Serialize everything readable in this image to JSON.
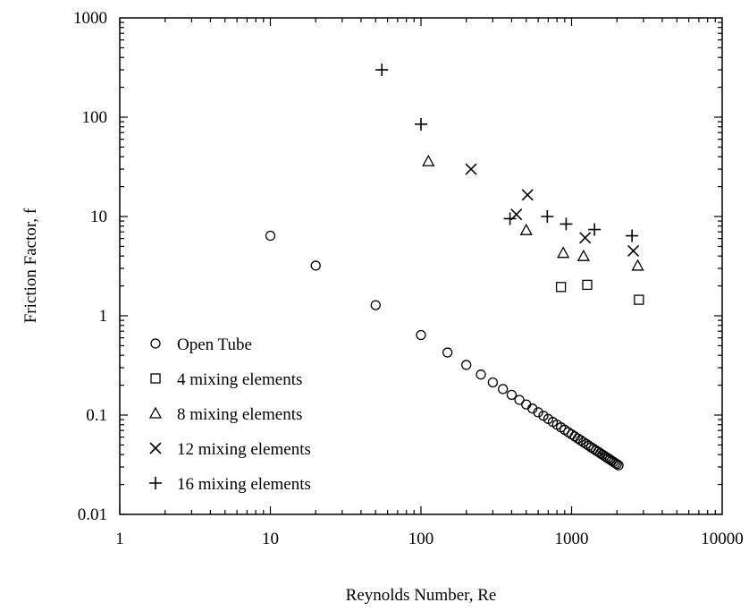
{
  "chart_data": {
    "type": "scatter",
    "xlabel": "Reynolds Number, Re",
    "ylabel": "Friction Factor, f",
    "xscale": "log",
    "yscale": "log",
    "xlim": [
      1,
      10000
    ],
    "ylim": [
      0.01,
      1000
    ],
    "xticks": [
      1,
      10,
      100,
      1000,
      10000
    ],
    "xtick_labels": [
      "1",
      "10",
      "100",
      "1000",
      "10000"
    ],
    "yticks": [
      0.01,
      0.1,
      1,
      10,
      100,
      1000
    ],
    "ytick_labels": [
      "0.01",
      "0.1",
      "1",
      "10",
      "100",
      "1000"
    ],
    "grid": false,
    "legend_position": "bottom-left",
    "series": [
      {
        "name": "Open Tube",
        "marker": "circle",
        "x": [
          10,
          20,
          50,
          100,
          150,
          200,
          250,
          300,
          350,
          400,
          450,
          500,
          550,
          600,
          650,
          700,
          750,
          800,
          850,
          900,
          950,
          1000,
          1050,
          1100,
          1150,
          1200,
          1250,
          1300,
          1350,
          1400,
          1450,
          1500,
          1550,
          1600,
          1650,
          1700,
          1750,
          1800,
          1850,
          1900,
          1950,
          2000,
          2050
        ],
        "y": [
          6.4,
          3.2,
          1.28,
          0.64,
          0.4267,
          0.32,
          0.256,
          0.2133,
          0.1829,
          0.16,
          0.1422,
          0.128,
          0.1164,
          0.1067,
          0.0985,
          0.0914,
          0.0853,
          0.08,
          0.0753,
          0.0711,
          0.0674,
          0.064,
          0.061,
          0.0582,
          0.0557,
          0.0533,
          0.0512,
          0.0492,
          0.0474,
          0.0457,
          0.0441,
          0.0427,
          0.0413,
          0.04,
          0.0388,
          0.0376,
          0.0366,
          0.0356,
          0.0346,
          0.0337,
          0.0328,
          0.032,
          0.0312
        ]
      },
      {
        "name": "4 mixing elements",
        "marker": "square",
        "x": [
          850,
          1270,
          2800
        ],
        "y": [
          1.95,
          2.05,
          1.45
        ]
      },
      {
        "name": "8 mixing elements",
        "marker": "triangle",
        "x": [
          112,
          500,
          880,
          1200,
          2750
        ],
        "y": [
          36,
          7.3,
          4.3,
          4.0,
          3.2
        ]
      },
      {
        "name": "12 mixing elements",
        "marker": "x",
        "x": [
          215,
          430,
          510,
          1230,
          2570
        ],
        "y": [
          30,
          10.5,
          16.5,
          6.1,
          4.5
        ]
      },
      {
        "name": "16 mixing elements",
        "marker": "plus",
        "x": [
          55,
          100,
          390,
          690,
          920,
          1420,
          2520
        ],
        "y": [
          300,
          85,
          9.5,
          10,
          8.4,
          7.4,
          6.4
        ]
      }
    ]
  }
}
